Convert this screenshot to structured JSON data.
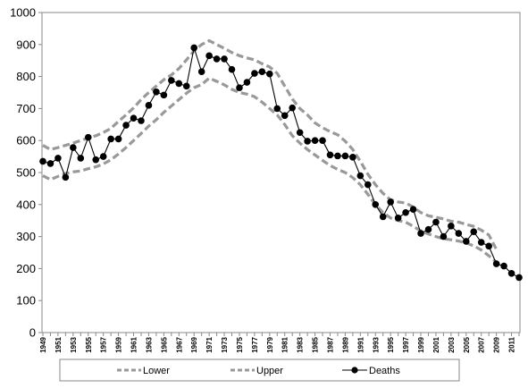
{
  "chart_data": {
    "type": "line",
    "title": "",
    "xlabel": "",
    "ylabel": "",
    "ylim": [
      0,
      1000
    ],
    "yticks": [
      0,
      100,
      200,
      300,
      400,
      500,
      600,
      700,
      800,
      900,
      1000
    ],
    "xlim": [
      1949,
      2012
    ],
    "xtick_labels": [
      "1949",
      "1951",
      "1953",
      "1955",
      "1957",
      "1959",
      "1961",
      "1963",
      "1965",
      "1967",
      "1969",
      "1971",
      "1973",
      "1975",
      "1977",
      "1979",
      "1981",
      "1983",
      "1985",
      "1987",
      "1989",
      "1991",
      "1993",
      "1995",
      "1997",
      "1999",
      "2001",
      "2003",
      "2005",
      "2007",
      "2009",
      "2011"
    ],
    "grid": false,
    "legend_position": "bottom",
    "series": [
      {
        "name": "Lower",
        "style": "dashed",
        "color": "#999999",
        "x": [
          1949,
          1950,
          1951,
          1952,
          1953,
          1954,
          1955,
          1956,
          1957,
          1958,
          1959,
          1960,
          1961,
          1962,
          1963,
          1964,
          1965,
          1966,
          1967,
          1968,
          1969,
          1970,
          1971,
          1972,
          1973,
          1974,
          1975,
          1976,
          1977,
          1978,
          1979,
          1980,
          1981,
          1982,
          1983,
          1984,
          1985,
          1986,
          1987,
          1988,
          1989,
          1990,
          1991,
          1992,
          1993,
          1994,
          1995,
          1996,
          1997,
          1998,
          1999,
          2000,
          2001,
          2002,
          2003,
          2004,
          2005,
          2006,
          2007,
          2008,
          2009,
          2010
        ],
        "values": [
          490,
          478,
          488,
          497,
          502,
          505,
          512,
          518,
          527,
          540,
          558,
          578,
          600,
          622,
          645,
          665,
          688,
          708,
          728,
          748,
          765,
          775,
          795,
          785,
          774,
          760,
          750,
          745,
          737,
          720,
          700,
          680,
          650,
          615,
          592,
          572,
          555,
          538,
          522,
          510,
          500,
          484,
          462,
          432,
          400,
          375,
          358,
          350,
          345,
          332,
          318,
          308,
          300,
          293,
          290,
          286,
          280,
          271,
          258,
          240,
          220,
          200
        ]
      },
      {
        "name": "Upper",
        "style": "dashed",
        "color": "#999999",
        "x": [
          1949,
          1950,
          1951,
          1952,
          1953,
          1954,
          1955,
          1956,
          1957,
          1958,
          1959,
          1960,
          1961,
          1962,
          1963,
          1964,
          1965,
          1966,
          1967,
          1968,
          1969,
          1970,
          1971,
          1972,
          1973,
          1974,
          1975,
          1976,
          1977,
          1978,
          1979,
          1980,
          1981,
          1982,
          1983,
          1984,
          1985,
          1986,
          1987,
          1988,
          1989,
          1990,
          1991,
          1992,
          1993,
          1994,
          1995,
          1996,
          1997,
          1998,
          1999,
          2000,
          2001,
          2002,
          2003,
          2004,
          2005,
          2006,
          2007,
          2008,
          2009
        ],
        "values": [
          585,
          572,
          578,
          585,
          592,
          600,
          608,
          615,
          625,
          638,
          660,
          680,
          702,
          728,
          750,
          770,
          790,
          805,
          825,
          852,
          880,
          900,
          912,
          900,
          888,
          875,
          865,
          858,
          852,
          840,
          830,
          810,
          770,
          730,
          700,
          680,
          655,
          640,
          628,
          618,
          598,
          572,
          535,
          495,
          462,
          435,
          415,
          408,
          405,
          392,
          375,
          365,
          360,
          355,
          348,
          345,
          338,
          332,
          320,
          305,
          260
        ]
      },
      {
        "name": "Deaths",
        "style": "solid",
        "color": "#000000",
        "marker": "circle",
        "x": [
          1949,
          1950,
          1951,
          1952,
          1953,
          1954,
          1955,
          1956,
          1957,
          1958,
          1959,
          1960,
          1961,
          1962,
          1963,
          1964,
          1965,
          1966,
          1967,
          1968,
          1969,
          1970,
          1971,
          1972,
          1973,
          1974,
          1975,
          1976,
          1977,
          1978,
          1979,
          1980,
          1981,
          1982,
          1983,
          1984,
          1985,
          1986,
          1987,
          1988,
          1989,
          1990,
          1991,
          1992,
          1993,
          1994,
          1995,
          1996,
          1997,
          1998,
          1999,
          2000,
          2001,
          2002,
          2003,
          2004,
          2005,
          2006,
          2007,
          2008,
          2009,
          2010,
          2011,
          2012
        ],
        "values": [
          535,
          528,
          545,
          485,
          578,
          545,
          610,
          540,
          550,
          605,
          605,
          648,
          670,
          662,
          710,
          752,
          742,
          788,
          778,
          770,
          890,
          815,
          865,
          855,
          855,
          822,
          765,
          782,
          810,
          815,
          808,
          700,
          678,
          702,
          625,
          598,
          600,
          600,
          555,
          552,
          552,
          548,
          490,
          462,
          400,
          362,
          408,
          358,
          375,
          385,
          310,
          322,
          345,
          300,
          333,
          310,
          285,
          315,
          282,
          270,
          215,
          208,
          185,
          172
        ]
      }
    ]
  }
}
